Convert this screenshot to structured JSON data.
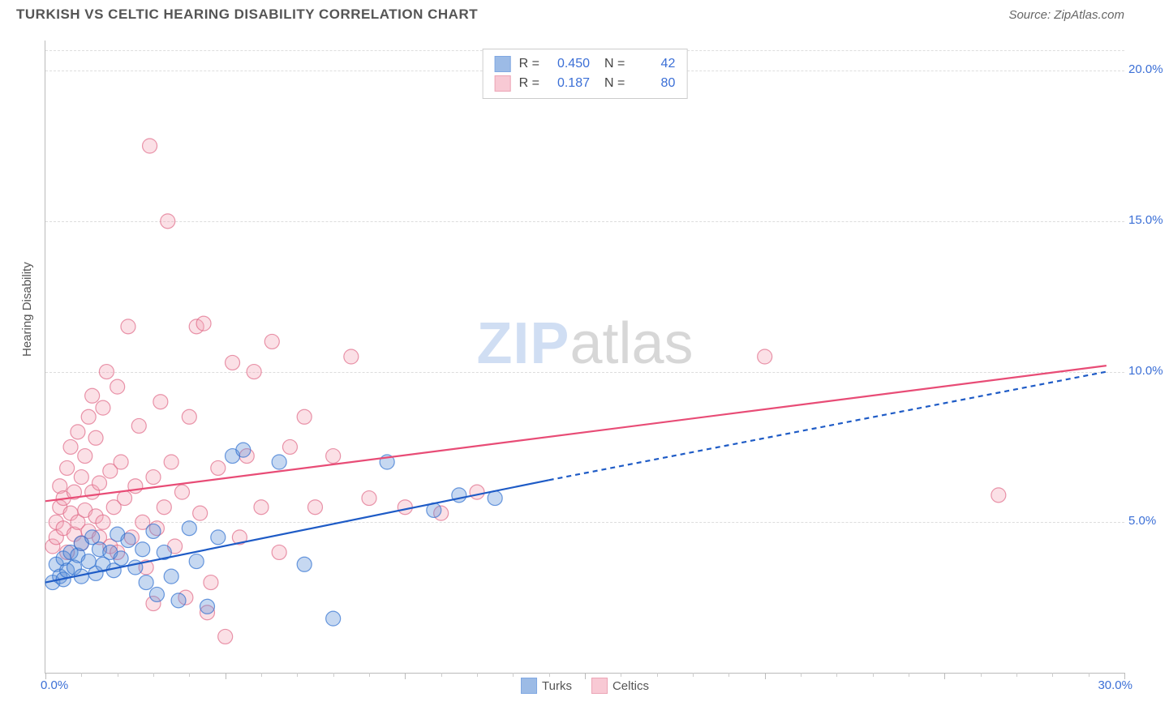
{
  "header": {
    "title": "TURKISH VS CELTIC HEARING DISABILITY CORRELATION CHART",
    "source": "Source: ZipAtlas.com"
  },
  "chart": {
    "type": "scatter",
    "ylabel": "Hearing Disability",
    "xlim": [
      0,
      30
    ],
    "ylim": [
      0,
      21
    ],
    "x_major_ticks": [
      0,
      5,
      10,
      15,
      20,
      25,
      30
    ],
    "x_minor_step": 1,
    "y_gridlines": [
      5,
      10,
      15,
      20
    ],
    "y_tick_labels": [
      "5.0%",
      "10.0%",
      "15.0%",
      "20.0%"
    ],
    "x_tick_labels": {
      "left": "0.0%",
      "right": "30.0%"
    },
    "background_color": "#ffffff",
    "grid_color": "#dddddd",
    "axis_color": "#bbbbbb",
    "tick_label_color": "#3b6fd6",
    "label_fontsize": 15,
    "marker_radius": 9,
    "marker_fill_opacity": 0.35,
    "marker_stroke_width": 1.2,
    "trend_line_width": 2.2,
    "series": [
      {
        "name": "Turks",
        "color": "#5b8fd6",
        "stroke": "#2d6fd0",
        "line_color": "#1e5bc6",
        "R": "0.450",
        "N": "42",
        "trend": {
          "x1": 0,
          "y1": 3.0,
          "x2": 14,
          "y2": 6.4,
          "dash_to_x": 29.5,
          "dash_to_y": 10.0
        },
        "points": [
          [
            0.2,
            3.0
          ],
          [
            0.3,
            3.6
          ],
          [
            0.4,
            3.2
          ],
          [
            0.5,
            3.8
          ],
          [
            0.5,
            3.1
          ],
          [
            0.6,
            3.4
          ],
          [
            0.7,
            4.0
          ],
          [
            0.8,
            3.5
          ],
          [
            0.9,
            3.9
          ],
          [
            1.0,
            3.2
          ],
          [
            1.0,
            4.3
          ],
          [
            1.2,
            3.7
          ],
          [
            1.3,
            4.5
          ],
          [
            1.4,
            3.3
          ],
          [
            1.5,
            4.1
          ],
          [
            1.6,
            3.6
          ],
          [
            1.8,
            4.0
          ],
          [
            1.9,
            3.4
          ],
          [
            2.0,
            4.6
          ],
          [
            2.1,
            3.8
          ],
          [
            2.3,
            4.4
          ],
          [
            2.5,
            3.5
          ],
          [
            2.7,
            4.1
          ],
          [
            2.8,
            3.0
          ],
          [
            3.0,
            4.7
          ],
          [
            3.1,
            2.6
          ],
          [
            3.3,
            4.0
          ],
          [
            3.5,
            3.2
          ],
          [
            3.7,
            2.4
          ],
          [
            4.0,
            4.8
          ],
          [
            4.2,
            3.7
          ],
          [
            4.5,
            2.2
          ],
          [
            4.8,
            4.5
          ],
          [
            5.2,
            7.2
          ],
          [
            5.5,
            7.4
          ],
          [
            6.5,
            7.0
          ],
          [
            7.2,
            3.6
          ],
          [
            8.0,
            1.8
          ],
          [
            9.5,
            7.0
          ],
          [
            10.8,
            5.4
          ],
          [
            11.5,
            5.9
          ],
          [
            12.5,
            5.8
          ]
        ]
      },
      {
        "name": "Celtics",
        "color": "#f4a6b8",
        "stroke": "#e06a87",
        "line_color": "#e84c76",
        "R": "0.187",
        "N": "80",
        "trend": {
          "x1": 0,
          "y1": 5.7,
          "x2": 29.5,
          "y2": 10.2
        },
        "points": [
          [
            0.2,
            4.2
          ],
          [
            0.3,
            5.0
          ],
          [
            0.3,
            4.5
          ],
          [
            0.4,
            5.5
          ],
          [
            0.4,
            6.2
          ],
          [
            0.5,
            4.8
          ],
          [
            0.5,
            5.8
          ],
          [
            0.6,
            6.8
          ],
          [
            0.6,
            4.0
          ],
          [
            0.7,
            5.3
          ],
          [
            0.7,
            7.5
          ],
          [
            0.8,
            4.6
          ],
          [
            0.8,
            6.0
          ],
          [
            0.9,
            8.0
          ],
          [
            0.9,
            5.0
          ],
          [
            1.0,
            6.5
          ],
          [
            1.0,
            4.3
          ],
          [
            1.1,
            7.2
          ],
          [
            1.1,
            5.4
          ],
          [
            1.2,
            8.5
          ],
          [
            1.2,
            4.7
          ],
          [
            1.3,
            6.0
          ],
          [
            1.3,
            9.2
          ],
          [
            1.4,
            5.2
          ],
          [
            1.4,
            7.8
          ],
          [
            1.5,
            4.5
          ],
          [
            1.5,
            6.3
          ],
          [
            1.6,
            8.8
          ],
          [
            1.6,
            5.0
          ],
          [
            1.7,
            10.0
          ],
          [
            1.8,
            4.2
          ],
          [
            1.8,
            6.7
          ],
          [
            1.9,
            5.5
          ],
          [
            2.0,
            9.5
          ],
          [
            2.0,
            4.0
          ],
          [
            2.1,
            7.0
          ],
          [
            2.2,
            5.8
          ],
          [
            2.3,
            11.5
          ],
          [
            2.4,
            4.5
          ],
          [
            2.5,
            6.2
          ],
          [
            2.6,
            8.2
          ],
          [
            2.7,
            5.0
          ],
          [
            2.8,
            3.5
          ],
          [
            2.9,
            17.5
          ],
          [
            3.0,
            6.5
          ],
          [
            3.1,
            4.8
          ],
          [
            3.2,
            9.0
          ],
          [
            3.3,
            5.5
          ],
          [
            3.4,
            15.0
          ],
          [
            3.5,
            7.0
          ],
          [
            3.6,
            4.2
          ],
          [
            3.8,
            6.0
          ],
          [
            3.9,
            2.5
          ],
          [
            4.0,
            8.5
          ],
          [
            4.2,
            11.5
          ],
          [
            4.3,
            5.3
          ],
          [
            4.4,
            11.6
          ],
          [
            4.5,
            2.0
          ],
          [
            4.6,
            3.0
          ],
          [
            4.8,
            6.8
          ],
          [
            5.0,
            1.2
          ],
          [
            5.2,
            10.3
          ],
          [
            5.4,
            4.5
          ],
          [
            5.6,
            7.2
          ],
          [
            5.8,
            10.0
          ],
          [
            6.0,
            5.5
          ],
          [
            6.3,
            11.0
          ],
          [
            6.5,
            4.0
          ],
          [
            6.8,
            7.5
          ],
          [
            7.2,
            8.5
          ],
          [
            7.5,
            5.5
          ],
          [
            8.0,
            7.2
          ],
          [
            8.5,
            10.5
          ],
          [
            9.0,
            5.8
          ],
          [
            10.0,
            5.5
          ],
          [
            11.0,
            5.3
          ],
          [
            12.0,
            6.0
          ],
          [
            20.0,
            10.5
          ],
          [
            26.5,
            5.9
          ],
          [
            3.0,
            2.3
          ]
        ]
      }
    ],
    "watermark": {
      "part1": "ZIP",
      "part2": "atlas"
    }
  },
  "legend_top": {
    "r_label": "R =",
    "n_label": "N ="
  },
  "legend_bottom": {
    "items": [
      "Turks",
      "Celtics"
    ]
  }
}
